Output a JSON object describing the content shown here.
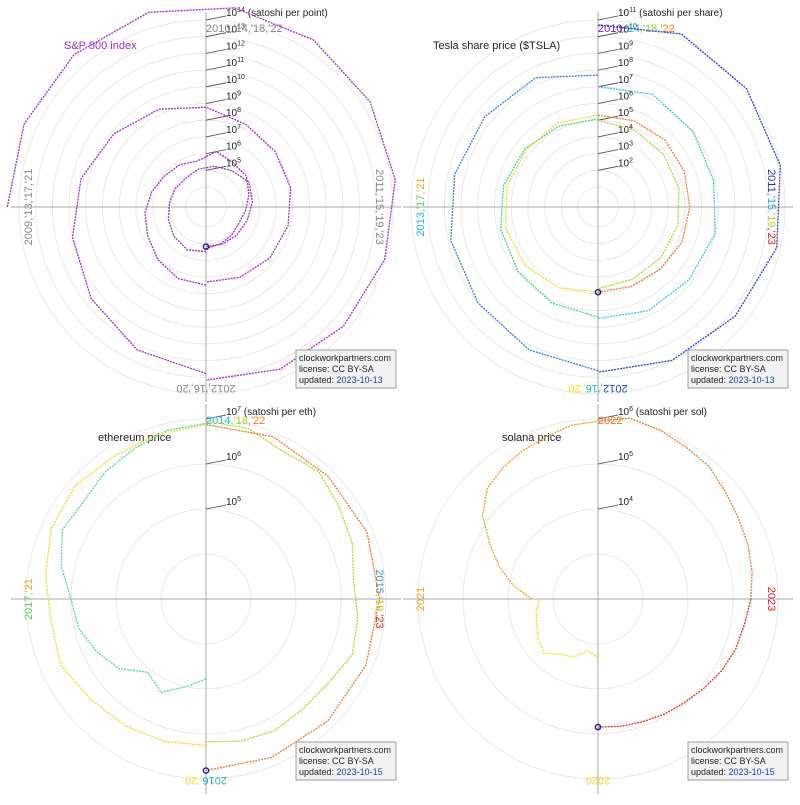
{
  "chart_data": [
    {
      "type": "polar-line",
      "title": "S&P 500 index",
      "unit_label": "(satoshi per point)",
      "title_color": "#9b30c8",
      "series_color": "#9b30c8",
      "radial_axis": {
        "scale": "log",
        "ticks": [
          {
            "base": "10",
            "exp": "5"
          },
          {
            "base": "10",
            "exp": "6"
          },
          {
            "base": "10",
            "exp": "7"
          },
          {
            "base": "10",
            "exp": "8"
          },
          {
            "base": "10",
            "exp": "9"
          },
          {
            "base": "10",
            "exp": "10"
          },
          {
            "base": "10",
            "exp": "11"
          },
          {
            "base": "10",
            "exp": "12"
          },
          {
            "base": "10",
            "exp": "13"
          },
          {
            "base": "10",
            "exp": "14"
          }
        ]
      },
      "year_labels": {
        "top": [
          {
            "text": "2010,'14,'18,'22",
            "color": "#888888"
          }
        ],
        "right": [
          {
            "text": "2011,'15,'19,'23",
            "color": "#888888"
          }
        ],
        "bottom": [
          {
            "text": "2012,'16,'20",
            "color": "#888888"
          }
        ],
        "left": [
          {
            "text": "2009,'13,'17,'21",
            "color": "#888888"
          }
        ]
      },
      "series": [
        {
          "years": "2009-2011",
          "values_satoshi": [
            500000000000000.0,
            600000000000000.0,
            750000000000000.0,
            900000000000000.0,
            700000000000000.0,
            500000000000000.0,
            300000000000000.0,
            180000000000000.0,
            90000000000000.0,
            50000000000000.0,
            30000000000000.0,
            15000000000000.0
          ]
        },
        {
          "years": "2012-2015",
          "values_satoshi": [
            6000000000000.0,
            2000000000000.0,
            400000000000.0,
            100000000000.0,
            30000000000.0,
            7000000000.0,
            2000000000.0,
            600000000.0,
            200000000.0,
            130000000.0,
            100000000.0,
            70000000.0,
            50000000.0,
            30000000.0,
            20000000.0
          ]
        },
        {
          "years": "2016-2019",
          "values_satoshi": [
            30000000.0,
            25000000.0,
            12000000.0,
            5000000.0,
            3000000.0,
            1500000.0,
            800000.0,
            600000.0,
            400000.0,
            1500000.0,
            800000.0,
            700000.0,
            300000.0,
            150000.0,
            100000.0,
            120000.0,
            150000.0,
            200000.0
          ]
        },
        {
          "years": "2020-2023",
          "values_satoshi": [
            300000.0,
            400000.0,
            250000.0,
            150000.0,
            100000.0,
            90000.0,
            80000.0,
            130000.0,
            200000.0,
            300000.0,
            600000.0,
            400000.0,
            250000.0,
            200000.0,
            170000.0,
            150000.0
          ]
        }
      ],
      "current": {
        "date": "2023-10-13",
        "value_satoshi": 150000.0
      },
      "credit": {
        "site": "clockworkpartners.com",
        "license": "license: CC BY-SA",
        "updated_label": "updated:",
        "updated_date": "2023-10-13"
      }
    },
    {
      "type": "polar-line",
      "title": "Tesla share price ($TSLA)",
      "unit_label": "(satoshi per share)",
      "title_color": "#222222",
      "radial_axis": {
        "scale": "log",
        "ticks": [
          {
            "base": "10",
            "exp": "2"
          },
          {
            "base": "10",
            "exp": "3"
          },
          {
            "base": "10",
            "exp": "4"
          },
          {
            "base": "10",
            "exp": "5"
          },
          {
            "base": "10",
            "exp": "6"
          },
          {
            "base": "10",
            "exp": "7"
          },
          {
            "base": "10",
            "exp": "8"
          },
          {
            "base": "10",
            "exp": "9"
          },
          {
            "base": "10",
            "exp": "10"
          },
          {
            "base": "10",
            "exp": "11"
          }
        ]
      },
      "year_labels": {
        "top": [
          {
            "text": "2010",
            "color": "#7a22d0"
          },
          {
            "text": ",'14",
            "color": "#19c4d8"
          },
          {
            "text": ",'18",
            "color": "#8fd62a"
          },
          {
            "text": ",'22",
            "color": "#f07a22"
          }
        ],
        "right": [
          {
            "text": "2011",
            "color": "#2030c8"
          },
          {
            "text": ",'15",
            "color": "#2aa0e0"
          },
          {
            "text": ",'19",
            "color": "#b8d020"
          },
          {
            "text": ",'23",
            "color": "#e02020"
          }
        ],
        "bottom": [
          {
            "text": "2012",
            "color": "#2244cc"
          },
          {
            "text": ",'16",
            "color": "#2ab8a8"
          },
          {
            "text": ",'20",
            "color": "#f0e020"
          }
        ],
        "left": [
          {
            "text": "2013",
            "color": "#28b4d8"
          },
          {
            "text": ",'17",
            "color": "#5ccc60"
          },
          {
            "text": ",'21",
            "color": "#f0a020"
          }
        ]
      },
      "series": [
        {
          "years": "2010-2011",
          "color": "#2a3ed0",
          "values_satoshi": [
            50000000000.0,
            200000000000.0,
            150000000000.0,
            100000000000.0,
            60000000000.0,
            20000000000.0,
            10000000000.0,
            5000000000.0
          ]
        },
        {
          "years": "2012-2013",
          "color": "#3a7ee0",
          "values_satoshi": [
            4000000000.0,
            2000000000.0,
            1000000000.0,
            700000000.0,
            400000000.0,
            300000000.0,
            250000000.0,
            50000000.0
          ]
        },
        {
          "years": "2014-2015",
          "color": "#38c8e0",
          "values_satoshi": [
            10000000.0,
            20000000.0,
            12000000.0,
            8000000.0,
            10000000.0,
            6000000.0,
            5000000.0,
            3000000.0
          ]
        },
        {
          "years": "2016-2017",
          "color": "#40d890",
          "values_satoshi": [
            2500000.0,
            1500000.0,
            900000.0,
            600000.0,
            400000.0,
            250000.0,
            150000.0,
            120000.0
          ]
        },
        {
          "years": "2018-2019",
          "color": "#a8dc30",
          "values_satoshi": [
            100000.0,
            80000.0,
            70000.0,
            60000.0,
            50000.0,
            45000.0,
            40000.0,
            50000.0
          ]
        },
        {
          "years": "2020-2021",
          "color": "#f0dc20",
          "values_satoshi": [
            80000.0,
            150000.0,
            250000.0,
            300000.0,
            250000.0,
            200000.0,
            250000.0,
            200000.0
          ]
        },
        {
          "years": "2022-2023",
          "color": "#f07a30",
          "values_satoshi": [
            200000.0,
            250000.0,
            300000.0,
            250000.0,
            200000.0,
            180000.0,
            120000.0,
            90000.0,
            80000.0
          ]
        }
      ],
      "current": {
        "date": "2023-10-13",
        "value_satoshi": 80000.0
      },
      "credit": {
        "site": "clockworkpartners.com",
        "license": "license: CC BY-SA",
        "updated_label": "updated:",
        "updated_date": "2023-10-13"
      }
    },
    {
      "type": "polar-line",
      "title": "ethereum price",
      "unit_label": "(satoshi per eth)",
      "title_color": "#222222",
      "radial_axis": {
        "scale": "log",
        "ticks": [
          {
            "base": "10",
            "exp": "5"
          },
          {
            "base": "10",
            "exp": "6"
          },
          {
            "base": "10",
            "exp": "7"
          }
        ]
      },
      "year_labels": {
        "top": [
          {
            "text": "2014",
            "color": "#19c4d8"
          },
          {
            "text": ",'18",
            "color": "#8fd62a"
          },
          {
            "text": ",'22",
            "color": "#f07a22"
          }
        ],
        "right": [
          {
            "text": "2015",
            "color": "#2aa0e0"
          },
          {
            "text": ",'19",
            "color": "#b8d020"
          },
          {
            "text": ",'23",
            "color": "#e02020"
          }
        ],
        "bottom": [
          {
            "text": "2016",
            "color": "#2ab8a8"
          },
          {
            "text": ",'20",
            "color": "#f0e020"
          }
        ],
        "left": [
          {
            "text": "2017",
            "color": "#5ccc60"
          },
          {
            "text": ",'21",
            "color": "#f0a020"
          }
        ]
      },
      "series": [
        {
          "years": "2016-2017",
          "color": "#58d8a0",
          "values_satoshi": [
            60000.0,
            100000.0,
            200000.0,
            120000.0,
            300000.0,
            500000.0,
            800000.0,
            1000000.0,
            2000000.0,
            3500000.0,
            3000000.0,
            4000000.0,
            5000000.0,
            7000000.0,
            8000000.0
          ]
        },
        {
          "years": "2018-2019",
          "color": "#a8dc30",
          "values_satoshi": [
            9000000.0,
            8000000.0,
            5000000.0,
            6000000.0,
            4000000.0,
            3000000.0,
            2000000.0,
            2500000.0,
            3000000.0,
            2000000.0,
            1800000.0,
            2000000.0,
            1800000.0,
            1500000.0
          ]
        },
        {
          "years": "2020-2021",
          "color": "#f0dc20",
          "values_satoshi": [
            1800000.0,
            2000000.0,
            2200000.0,
            2500000.0,
            3500000.0,
            3000000.0,
            4000000.0,
            6000000.0,
            7000000.0,
            6000000.0,
            6500000.0,
            7500000.0
          ]
        },
        {
          "years": "2022-2023",
          "color": "#f07a30",
          "values_satoshi": [
            7500000.0,
            8000000.0,
            7000000.0,
            7500000.0,
            7200000.0,
            7000000.0,
            6800000.0,
            6500000.0,
            6500000.0
          ]
        }
      ],
      "current": {
        "date": "2023-10-15",
        "value_satoshi": 6200000.0
      },
      "credit": {
        "site": "clockworkpartners.com",
        "license": "license: CC BY-SA",
        "updated_label": "updated:",
        "updated_date": "2023-10-15"
      }
    },
    {
      "type": "polar-line",
      "title": "solana price",
      "unit_label": "(satoshi per sol)",
      "title_color": "#222222",
      "radial_axis": {
        "scale": "log",
        "ticks": [
          {
            "base": "10",
            "exp": "4"
          },
          {
            "base": "10",
            "exp": "5"
          },
          {
            "base": "10",
            "exp": "6"
          }
        ]
      },
      "year_labels": {
        "top": [
          {
            "text": "2022",
            "color": "#f07a22"
          }
        ],
        "right": [
          {
            "text": "2023",
            "color": "#e02020"
          }
        ],
        "bottom": [
          {
            "text": "2020",
            "color": "#f0e020"
          }
        ],
        "left": [
          {
            "text": "2021",
            "color": "#f0a020"
          }
        ]
      },
      "series": [
        {
          "years": "2020",
          "color": "#f0e020",
          "values_satoshi": [
            2000.0,
            1500.0,
            2500.0,
            3000.0,
            5000.0,
            4000.0,
            3000.0,
            2500.0,
            2000.0
          ]
        },
        {
          "years": "2021",
          "color": "#f0a020",
          "values_satoshi": [
            3000.0,
            8000.0,
            20000.0,
            50000.0,
            150000.0,
            300000.0,
            400000.0,
            500000.0,
            600000.0,
            800000.0,
            900000.0
          ]
        },
        {
          "years": "2022",
          "color": "#f07a30",
          "values_satoshi": [
            900000.0,
            1200000.0,
            1000000.0,
            800000.0,
            700000.0,
            500000.0,
            400000.0,
            350000.0,
            300000.0,
            250000.0
          ]
        },
        {
          "years": "2023",
          "color": "#e03020",
          "values_satoshi": [
            250000.0,
            200000.0,
            180000.0,
            150000.0,
            120000.0,
            100000.0,
            90000.0,
            80000.0,
            75000.0,
            70000.0
          ]
        }
      ],
      "current": {
        "date": "2023-10-15",
        "value_satoshi": 70000.0
      },
      "credit": {
        "site": "clockworkpartners.com",
        "license": "license: CC BY-SA",
        "updated_label": "updated:",
        "updated_date": "2023-10-15"
      }
    }
  ]
}
